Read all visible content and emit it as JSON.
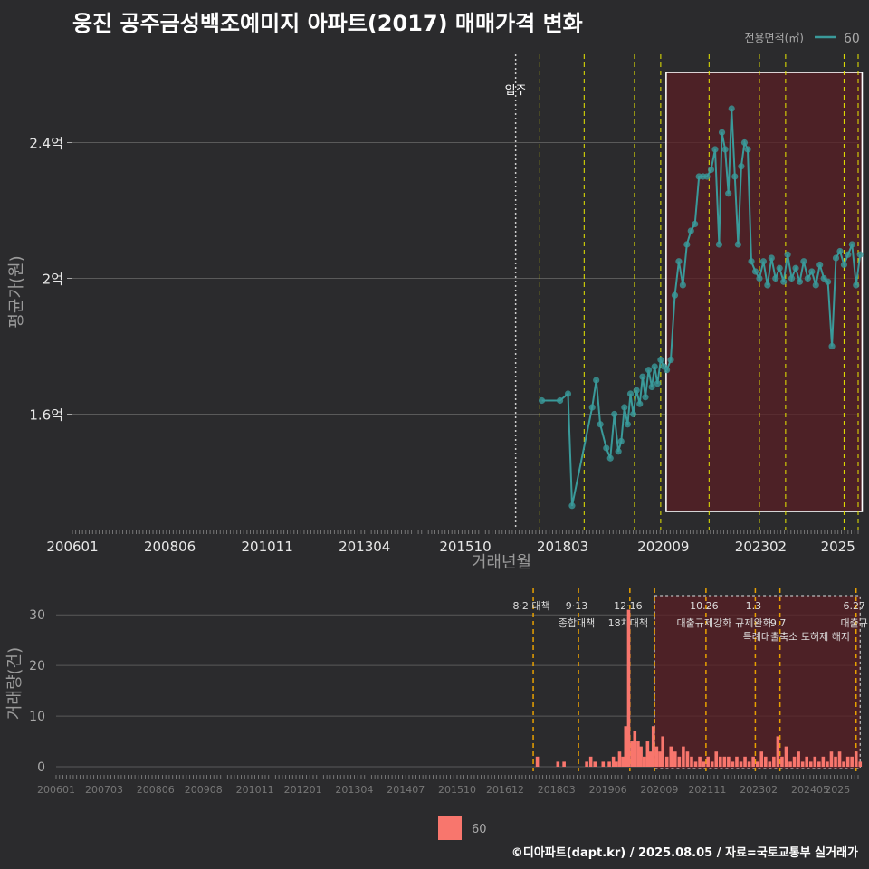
{
  "title": "웅진 공주금성백조예미지 아파트(2017) 매매가격 변화",
  "footer": "©디아파트(dapt.kr) / 2025.08.05 / 자료=국토교통부 실거래가",
  "colors": {
    "background": "#2b2b2d",
    "line": "#3a9a9a",
    "bar": "#f8766d",
    "vline": "#e8e800",
    "orange": "#e8a000",
    "highlight": "#5a1f24"
  },
  "chart_data": [
    {
      "type": "line",
      "title": "웅진 공주금성백조예미지 아파트(2017) 매매가격 변화",
      "xlabel": "거래년월",
      "ylabel": "평균가(원)",
      "x_ticks": [
        "200601",
        "200806",
        "201011",
        "201304",
        "201510",
        "201803",
        "202009",
        "202302",
        "2025"
      ],
      "y_ticks": [
        {
          "value": 1.6,
          "label": "1.6억"
        },
        {
          "value": 2.0,
          "label": "2억"
        },
        {
          "value": 2.4,
          "label": "2.4억"
        }
      ],
      "ylim": [
        1.26,
        2.66
      ],
      "legend": {
        "title": "전용면적(㎡)",
        "entries": [
          "60"
        ],
        "position": "top-right"
      },
      "move_in": {
        "date": 2017.0,
        "label": "입주"
      },
      "policy_dates": [
        2017.6,
        2018.7,
        2019.95,
        2020.6,
        2021.8,
        2023.05,
        2023.7,
        2025.15,
        2025.5
      ],
      "highlight_range": [
        2020.6,
        2025.6
      ],
      "series": [
        {
          "name": "60",
          "points": [
            [
              2017.65,
              1.64
            ],
            [
              2018.1,
              1.64
            ],
            [
              2018.3,
              1.66
            ],
            [
              2018.4,
              1.33
            ],
            [
              2018.9,
              1.62
            ],
            [
              2019.0,
              1.7
            ],
            [
              2019.1,
              1.57
            ],
            [
              2019.25,
              1.5
            ],
            [
              2019.35,
              1.47
            ],
            [
              2019.45,
              1.6
            ],
            [
              2019.55,
              1.49
            ],
            [
              2019.62,
              1.52
            ],
            [
              2019.7,
              1.62
            ],
            [
              2019.78,
              1.57
            ],
            [
              2019.85,
              1.66
            ],
            [
              2019.92,
              1.6
            ],
            [
              2020.0,
              1.67
            ],
            [
              2020.08,
              1.63
            ],
            [
              2020.15,
              1.71
            ],
            [
              2020.22,
              1.65
            ],
            [
              2020.3,
              1.73
            ],
            [
              2020.38,
              1.68
            ],
            [
              2020.45,
              1.74
            ],
            [
              2020.52,
              1.69
            ],
            [
              2020.6,
              1.76
            ],
            [
              2020.68,
              1.74
            ],
            [
              2020.75,
              1.73
            ],
            [
              2020.85,
              1.76
            ],
            [
              2020.95,
              1.95
            ],
            [
              2021.05,
              2.05
            ],
            [
              2021.15,
              1.98
            ],
            [
              2021.25,
              2.1
            ],
            [
              2021.35,
              2.14
            ],
            [
              2021.45,
              2.16
            ],
            [
              2021.55,
              2.3
            ],
            [
              2021.65,
              2.3
            ],
            [
              2021.75,
              2.3
            ],
            [
              2021.85,
              2.32
            ],
            [
              2021.95,
              2.38
            ],
            [
              2022.05,
              2.1
            ],
            [
              2022.12,
              2.43
            ],
            [
              2022.2,
              2.38
            ],
            [
              2022.28,
              2.25
            ],
            [
              2022.36,
              2.5
            ],
            [
              2022.44,
              2.3
            ],
            [
              2022.52,
              2.1
            ],
            [
              2022.6,
              2.33
            ],
            [
              2022.68,
              2.4
            ],
            [
              2022.76,
              2.38
            ],
            [
              2022.85,
              2.05
            ],
            [
              2022.95,
              2.02
            ],
            [
              2023.05,
              2.0
            ],
            [
              2023.15,
              2.05
            ],
            [
              2023.25,
              1.98
            ],
            [
              2023.35,
              2.06
            ],
            [
              2023.45,
              2.0
            ],
            [
              2023.55,
              2.03
            ],
            [
              2023.65,
              1.99
            ],
            [
              2023.75,
              2.07
            ],
            [
              2023.85,
              2.0
            ],
            [
              2023.95,
              2.03
            ],
            [
              2024.05,
              1.99
            ],
            [
              2024.15,
              2.05
            ],
            [
              2024.25,
              2.0
            ],
            [
              2024.35,
              2.02
            ],
            [
              2024.45,
              1.98
            ],
            [
              2024.55,
              2.04
            ],
            [
              2024.65,
              2.0
            ],
            [
              2024.75,
              1.99
            ],
            [
              2024.85,
              1.8
            ],
            [
              2024.95,
              2.06
            ],
            [
              2025.05,
              2.08
            ],
            [
              2025.15,
              2.04
            ],
            [
              2025.25,
              2.07
            ],
            [
              2025.35,
              2.1
            ],
            [
              2025.45,
              1.98
            ],
            [
              2025.55,
              2.07
            ]
          ]
        }
      ],
      "annotations": [
        "입주"
      ]
    },
    {
      "type": "bar",
      "xlabel": "",
      "ylabel": "거래량(건)",
      "x_ticks": [
        "200601",
        "200703",
        "200806",
        "200908",
        "201011",
        "201201",
        "201304",
        "201407",
        "201510",
        "201612",
        "201803",
        "201906",
        "202009",
        "202111",
        "202302",
        "202405",
        "2025"
      ],
      "y_ticks": [
        0,
        10,
        20,
        30
      ],
      "ylim": [
        0,
        32
      ],
      "legend": {
        "entries": [
          "60"
        ],
        "position": "bottom"
      },
      "bars": [
        [
          2017.7,
          2
        ],
        [
          2018.2,
          1
        ],
        [
          2018.35,
          1
        ],
        [
          2018.9,
          1
        ],
        [
          2019.0,
          2
        ],
        [
          2019.1,
          1
        ],
        [
          2019.3,
          1
        ],
        [
          2019.45,
          1
        ],
        [
          2019.55,
          2
        ],
        [
          2019.62,
          1
        ],
        [
          2019.7,
          3
        ],
        [
          2019.78,
          2
        ],
        [
          2019.85,
          8
        ],
        [
          2019.92,
          31
        ],
        [
          2020.0,
          5
        ],
        [
          2020.07,
          7
        ],
        [
          2020.15,
          5
        ],
        [
          2020.22,
          4
        ],
        [
          2020.3,
          2
        ],
        [
          2020.38,
          5
        ],
        [
          2020.45,
          3
        ],
        [
          2020.52,
          8
        ],
        [
          2020.6,
          4
        ],
        [
          2020.68,
          3
        ],
        [
          2020.75,
          6
        ],
        [
          2020.85,
          2
        ],
        [
          2020.95,
          4
        ],
        [
          2021.05,
          3
        ],
        [
          2021.15,
          2
        ],
        [
          2021.25,
          4
        ],
        [
          2021.35,
          3
        ],
        [
          2021.45,
          2
        ],
        [
          2021.55,
          1
        ],
        [
          2021.65,
          2
        ],
        [
          2021.75,
          1
        ],
        [
          2021.85,
          2
        ],
        [
          2021.95,
          1
        ],
        [
          2022.05,
          3
        ],
        [
          2022.15,
          2
        ],
        [
          2022.25,
          2
        ],
        [
          2022.35,
          2
        ],
        [
          2022.45,
          1
        ],
        [
          2022.55,
          2
        ],
        [
          2022.65,
          1
        ],
        [
          2022.75,
          2
        ],
        [
          2022.85,
          1
        ],
        [
          2022.95,
          2
        ],
        [
          2023.05,
          1
        ],
        [
          2023.15,
          3
        ],
        [
          2023.25,
          2
        ],
        [
          2023.35,
          1
        ],
        [
          2023.45,
          2
        ],
        [
          2023.55,
          6
        ],
        [
          2023.65,
          2
        ],
        [
          2023.75,
          4
        ],
        [
          2023.85,
          1
        ],
        [
          2023.95,
          2
        ],
        [
          2024.05,
          3
        ],
        [
          2024.15,
          1
        ],
        [
          2024.25,
          2
        ],
        [
          2024.35,
          1
        ],
        [
          2024.45,
          2
        ],
        [
          2024.55,
          1
        ],
        [
          2024.65,
          2
        ],
        [
          2024.75,
          1
        ],
        [
          2024.85,
          3
        ],
        [
          2024.95,
          2
        ],
        [
          2025.05,
          3
        ],
        [
          2025.15,
          1
        ],
        [
          2025.25,
          2
        ],
        [
          2025.35,
          2
        ],
        [
          2025.45,
          3
        ],
        [
          2025.55,
          1
        ]
      ],
      "policy_events": [
        {
          "date": 2017.6,
          "line1": "8·2 대책",
          "line2": ""
        },
        {
          "date": 2018.7,
          "line1": "9·13",
          "line2": "종합대책"
        },
        {
          "date": 2019.95,
          "line1": "12·16",
          "line2": "18차대책"
        },
        {
          "date": 2020.55,
          "line1": "",
          "line2": ""
        },
        {
          "date": 2021.8,
          "line1": "10.26",
          "line2": "대출규제강화"
        },
        {
          "date": 2023.0,
          "line1": "1.3",
          "line2": "규제완화"
        },
        {
          "date": 2023.6,
          "line1": "",
          "line2": "9.7"
        },
        {
          "date": 2025.45,
          "line1": "6.27",
          "line2": "대출규"
        }
      ],
      "extra_note": "특례대출축소 토허제 해지"
    }
  ]
}
